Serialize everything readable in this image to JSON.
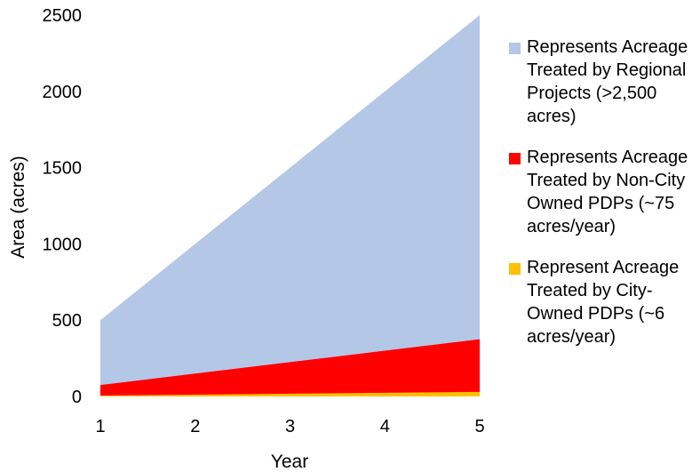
{
  "chart_data": {
    "type": "area",
    "stacked": true,
    "x": [
      1,
      2,
      3,
      4,
      5
    ],
    "xlabel": "Year",
    "ylabel": "Area (acres)",
    "ylim": [
      0,
      2500
    ],
    "yticks": [
      0,
      500,
      1000,
      1500,
      2000,
      2500
    ],
    "xticks": [
      1,
      2,
      3,
      4,
      5
    ],
    "grid": false,
    "legend_position": "right",
    "series": [
      {
        "name": "Represent Acreage Treated by City-Owned PDPs (~6 acres/year)",
        "values": [
          6,
          12,
          18,
          24,
          30
        ],
        "color": "#ffc000"
      },
      {
        "name": "Represents Acreage Treated by Non-City Owned PDPs (~75 acres/year)",
        "values": [
          75,
          150,
          225,
          300,
          375
        ],
        "color": "#ff0000"
      },
      {
        "name": "Represents Acreage Treated by Regional Projects (>2,500 acres)",
        "values": [
          500,
          1000,
          1500,
          2000,
          2500
        ],
        "color": "#b4c7e7"
      }
    ]
  },
  "legend": [
    {
      "label": "Represents Acreage Treated by Regional Projects (>2,500 acres)",
      "color": "#b4c7e7"
    },
    {
      "label": "Represents Acreage Treated by Non-City Owned PDPs (~75 acres/year)",
      "color": "#ff0000"
    },
    {
      "label": "Represent Acreage Treated by City-Owned PDPs (~6 acres/year)",
      "color": "#ffc000"
    }
  ]
}
